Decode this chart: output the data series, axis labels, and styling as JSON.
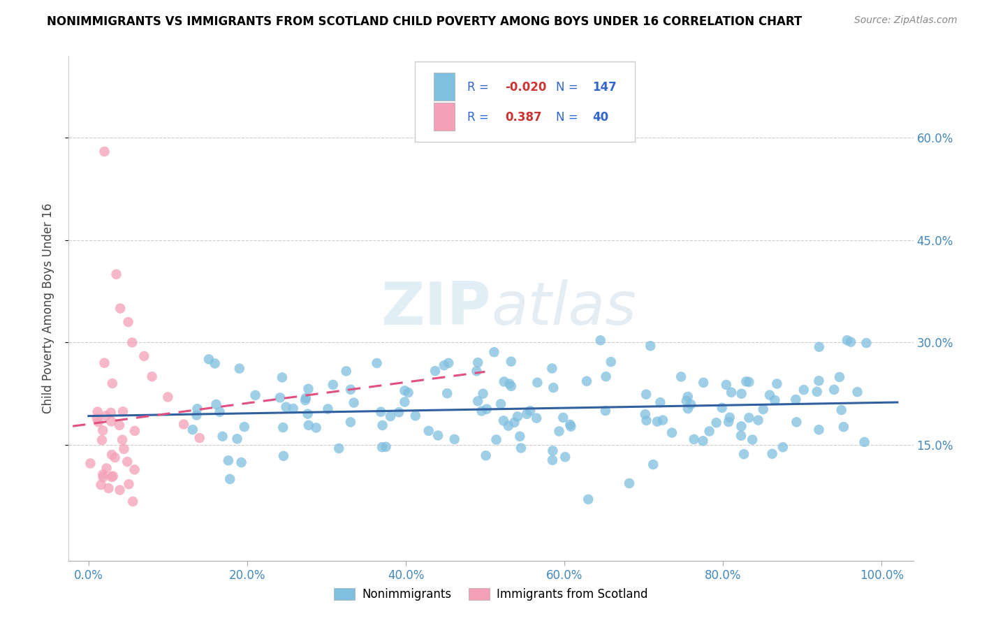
{
  "title": "NONIMMIGRANTS VS IMMIGRANTS FROM SCOTLAND CHILD POVERTY AMONG BOYS UNDER 16 CORRELATION CHART",
  "source": "Source: ZipAtlas.com",
  "ylabel": "Child Poverty Among Boys Under 16",
  "blue_R": -0.02,
  "blue_N": 147,
  "pink_R": 0.387,
  "pink_N": 40,
  "blue_color": "#7fbfdf",
  "pink_color": "#f4a0b8",
  "blue_line_color": "#3060a0",
  "pink_line_color": "#e05080",
  "watermark": "ZIPatlas",
  "legend_label_blue": "Nonimmigrants",
  "legend_label_pink": "Immigrants from Scotland",
  "ytick_positions": [
    0.15,
    0.3,
    0.45,
    0.6
  ],
  "ytick_labels": [
    "15.0%",
    "30.0%",
    "45.0%",
    "60.0%"
  ],
  "xtick_vals": [
    0.0,
    0.2,
    0.4,
    0.6,
    0.8,
    1.0
  ],
  "xtick_labels": [
    "0.0%",
    "20.0%",
    "40.0%",
    "60.0%",
    "80.0%",
    "100.0%"
  ]
}
